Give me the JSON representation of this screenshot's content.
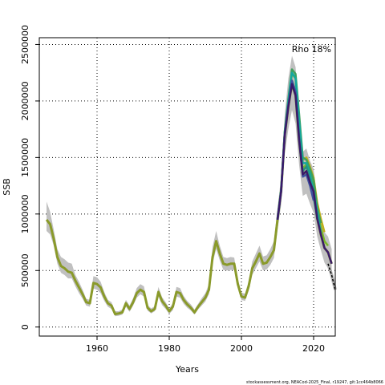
{
  "chart_data": {
    "type": "line",
    "xlabel": "Years",
    "ylabel": "SSB",
    "xlim": [
      1944,
      2026
    ],
    "ylim": [
      -80000,
      2560000
    ],
    "xticks": [
      1960,
      1980,
      2000,
      2020
    ],
    "yticks": [
      0,
      500000,
      1000000,
      1500000,
      2000000,
      2500000
    ],
    "ytick_labels": [
      "0",
      "500000",
      "1000000",
      "1500000",
      "2000000",
      "2500000"
    ],
    "grid": true,
    "legend_text": "Rho 18%",
    "legend_position": "top-right",
    "caption": "stockassessment.org, NEACod-2025_Final, r19247, git:1cc464b8066",
    "colors": {
      "base_line": "#8a9a2a",
      "band": "#c0c0c0",
      "peels": [
        "#7ab828",
        "#c0b018",
        "#3fa05c",
        "#13a89e",
        "#2c8f7c",
        "#3e52a0",
        "#3a1a6a"
      ]
    },
    "base": {
      "x": [
        1946,
        1947,
        1948,
        1949,
        1950,
        1951,
        1952,
        1953,
        1954,
        1955,
        1956,
        1957,
        1958,
        1959,
        1960,
        1961,
        1962,
        1963,
        1964,
        1965,
        1966,
        1967,
        1968,
        1969,
        1970,
        1971,
        1972,
        1973,
        1974,
        1975,
        1976,
        1977,
        1978,
        1979,
        1980,
        1981,
        1982,
        1983,
        1984,
        1985,
        1986,
        1987,
        1988,
        1989,
        1990,
        1991,
        1992,
        1993,
        1994,
        1995,
        1996,
        1997,
        1998,
        1999,
        2000,
        2001,
        2002,
        2003,
        2004,
        2005,
        2006,
        2007,
        2008,
        2009,
        2010,
        2011,
        2012,
        2013,
        2014,
        2015,
        2016,
        2017,
        2018,
        2019,
        2020,
        2021,
        2022,
        2023,
        2024,
        2025
      ],
      "y": [
        950000,
        910000,
        780000,
        620000,
        540000,
        520000,
        490000,
        480000,
        410000,
        350000,
        290000,
        220000,
        210000,
        390000,
        380000,
        350000,
        270000,
        210000,
        190000,
        115000,
        120000,
        130000,
        210000,
        160000,
        220000,
        300000,
        330000,
        310000,
        170000,
        140000,
        160000,
        310000,
        230000,
        190000,
        140000,
        180000,
        310000,
        300000,
        240000,
        200000,
        170000,
        130000,
        180000,
        220000,
        260000,
        330000,
        620000,
        760000,
        650000,
        560000,
        550000,
        560000,
        560000,
        380000,
        270000,
        260000,
        360000,
        520000,
        580000,
        650000,
        560000,
        570000,
        620000,
        680000,
        950000,
        1200000,
        1700000,
        1950000,
        2150000,
        2050000,
        1650000,
        1350000,
        1380000,
        1280000,
        1200000,
        960000,
        820000,
        700000,
        660000,
        560000
      ],
      "lo": [
        850000,
        820000,
        720000,
        560000,
        480000,
        460000,
        430000,
        430000,
        360000,
        300000,
        250000,
        190000,
        180000,
        340000,
        330000,
        300000,
        230000,
        180000,
        160000,
        95000,
        100000,
        110000,
        180000,
        135000,
        190000,
        260000,
        290000,
        270000,
        145000,
        120000,
        140000,
        270000,
        195000,
        160000,
        115000,
        150000,
        270000,
        260000,
        205000,
        170000,
        145000,
        110000,
        155000,
        190000,
        225000,
        290000,
        560000,
        690000,
        590000,
        505000,
        500000,
        505000,
        505000,
        340000,
        240000,
        230000,
        320000,
        460000,
        520000,
        580000,
        500000,
        510000,
        550000,
        610000,
        860000,
        1080000,
        1530000,
        1750000,
        1920000,
        1800000,
        1430000,
        1160000,
        1180000,
        1090000,
        1010000,
        800000,
        680000,
        570000,
        520000,
        430000
      ],
      "hi": [
        1110000,
        1020000,
        860000,
        690000,
        620000,
        600000,
        570000,
        560000,
        460000,
        400000,
        330000,
        250000,
        240000,
        450000,
        440000,
        400000,
        310000,
        240000,
        220000,
        140000,
        140000,
        155000,
        240000,
        190000,
        255000,
        345000,
        380000,
        360000,
        195000,
        165000,
        185000,
        355000,
        265000,
        220000,
        165000,
        210000,
        355000,
        345000,
        275000,
        230000,
        200000,
        155000,
        205000,
        255000,
        300000,
        380000,
        710000,
        850000,
        720000,
        620000,
        610000,
        620000,
        615000,
        425000,
        305000,
        295000,
        405000,
        580000,
        650000,
        720000,
        625000,
        635000,
        690000,
        760000,
        1050000,
        1330000,
        1880000,
        2200000,
        2400000,
        2300000,
        1850000,
        1550000,
        1580000,
        1470000,
        1400000,
        1130000,
        980000,
        840000,
        800000,
        690000
      ]
    },
    "peels": [
      {
        "x": [
          2010,
          2011,
          2012,
          2013,
          2014,
          2015,
          2016,
          2017,
          2018,
          2019,
          2020,
          2021,
          2022,
          2023,
          2024
        ],
        "y": [
          955000,
          1205000,
          1710000,
          1970000,
          2180000,
          2090000,
          1700000,
          1400000,
          1440000,
          1340000,
          1260000,
          1020000,
          880000,
          760000,
          720000
        ]
      },
      {
        "x": [
          2010,
          2011,
          2012,
          2013,
          2014,
          2015,
          2016,
          2017,
          2018,
          2019,
          2020,
          2021,
          2022,
          2023
        ],
        "y": [
          960000,
          1210000,
          1720000,
          2000000,
          2240000,
          2200000,
          1820000,
          1480000,
          1500000,
          1420000,
          1320000,
          1100000,
          960000,
          840000
        ]
      },
      {
        "x": [
          2010,
          2011,
          2012,
          2013,
          2014,
          2015,
          2016,
          2017,
          2018,
          2019,
          2020,
          2021,
          2022
        ],
        "y": [
          960000,
          1215000,
          1730000,
          2020000,
          2280000,
          2240000,
          1880000,
          1500000,
          1480000,
          1400000,
          1300000,
          1060000,
          920000
        ]
      },
      {
        "x": [
          2010,
          2011,
          2012,
          2013,
          2014,
          2015,
          2016,
          2017,
          2018,
          2019,
          2020,
          2021,
          2022
        ],
        "y": [
          955000,
          1210000,
          1720000,
          2000000,
          2250000,
          2200000,
          1820000,
          1450000,
          1450000,
          1350000,
          1200000,
          1020000,
          830000
        ]
      },
      {
        "x": [
          2010,
          2011,
          2012,
          2013,
          2014,
          2015,
          2016,
          2017,
          2018,
          2019,
          2020,
          2021
        ],
        "y": [
          950000,
          1205000,
          1710000,
          1970000,
          2170000,
          2060000,
          1680000,
          1380000,
          1420000,
          1300000,
          1150000,
          960000
        ]
      },
      {
        "x": [
          2010,
          2011,
          2012,
          2013,
          2014,
          2015,
          2016,
          2017,
          2018,
          2019,
          2020
        ],
        "y": [
          950000,
          1200000,
          1700000,
          1960000,
          2180000,
          2080000,
          1660000,
          1330000,
          1350000,
          1250000,
          1120000
        ]
      },
      {
        "x": [
          2010,
          2011,
          2012,
          2013,
          2014,
          2015,
          2016,
          2017,
          2018,
          2019,
          2020,
          2021,
          2022,
          2023,
          2024,
          2025
        ],
        "y": [
          950000,
          1200000,
          1700000,
          1950000,
          2150000,
          2050000,
          1650000,
          1350000,
          1380000,
          1280000,
          1200000,
          960000,
          820000,
          700000,
          660000,
          560000
        ]
      }
    ],
    "forecast": {
      "x": [
        2024,
        2025,
        2026
      ],
      "y": [
        560000,
        460000,
        330000
      ],
      "style": "dashed"
    }
  }
}
